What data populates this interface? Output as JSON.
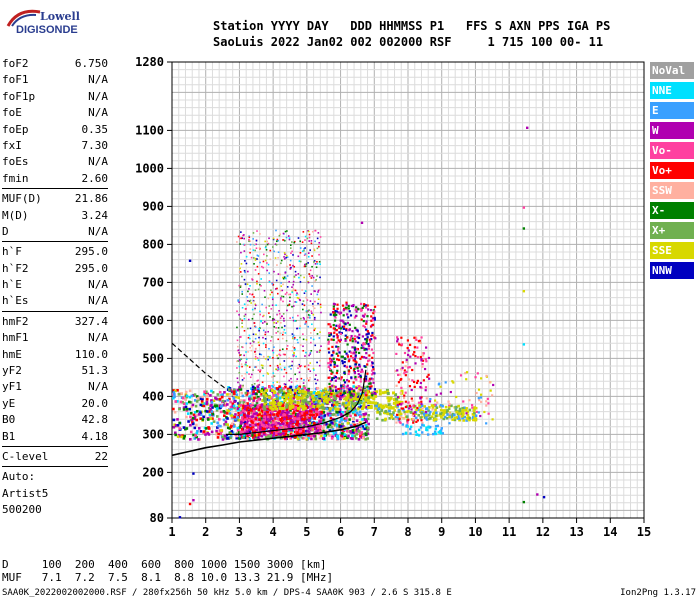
{
  "logo": {
    "line1": "Lowell",
    "line2": "DIGISONDE"
  },
  "header": {
    "line1": "Station YYYY DAY   DDD HHMMSS P1   FFS S AXN PPS IGA PS",
    "line2": "SaoLuis 2022 Jan02 002 002000 RSF     1 715 100 00- 11"
  },
  "params": [
    {
      "name": "foF2",
      "value": "6.750"
    },
    {
      "name": "foF1",
      "value": "N/A"
    },
    {
      "name": "foF1p",
      "value": "N/A"
    },
    {
      "name": "foE",
      "value": "N/A"
    },
    {
      "name": "foEp",
      "value": "0.35"
    },
    {
      "name": "fxI",
      "value": "7.30"
    },
    {
      "name": "foEs",
      "value": "N/A"
    },
    {
      "name": "fmin",
      "value": "2.60"
    },
    {
      "sep": true
    },
    {
      "name": "MUF(D)",
      "value": "21.86"
    },
    {
      "name": "M(D)",
      "value": "3.24"
    },
    {
      "name": "D",
      "value": "N/A"
    },
    {
      "sep": true
    },
    {
      "name": "h`F",
      "value": "295.0"
    },
    {
      "name": "h`F2",
      "value": "295.0"
    },
    {
      "name": "h`E",
      "value": "N/A"
    },
    {
      "name": "h`Es",
      "value": "N/A"
    },
    {
      "sep": true
    },
    {
      "name": "hmF2",
      "value": "327.4"
    },
    {
      "name": "hmF1",
      "value": "N/A"
    },
    {
      "name": "hmE",
      "value": "110.0"
    },
    {
      "name": "yF2",
      "value": "51.3"
    },
    {
      "name": "yF1",
      "value": "N/A"
    },
    {
      "name": "yE",
      "value": "20.0"
    },
    {
      "name": "B0",
      "value": "42.8"
    },
    {
      "name": "B1",
      "value": "4.18"
    },
    {
      "sep": true
    },
    {
      "name": "C-level",
      "value": "22"
    },
    {
      "sep": true
    },
    {
      "name": "Auto:",
      "value": ""
    },
    {
      "name": "Artist5",
      "value": ""
    },
    {
      "name": "500200",
      "value": ""
    }
  ],
  "legend": [
    {
      "label": "NoVal",
      "color": "#a0a0a0"
    },
    {
      "label": "NNE",
      "color": "#00e0ff"
    },
    {
      "label": "E",
      "color": "#3aa0ff"
    },
    {
      "label": "W",
      "color": "#b000b0"
    },
    {
      "label": "Vo-",
      "color": "#ff40a0"
    },
    {
      "label": "Vo+",
      "color": "#ff0000"
    },
    {
      "label": "SSW",
      "color": "#ffb0a0"
    },
    {
      "label": "X-",
      "color": "#008000"
    },
    {
      "label": "X+",
      "color": "#70b050"
    },
    {
      "label": "SSE",
      "color": "#d8d800"
    },
    {
      "label": "NNW",
      "color": "#0000c0"
    }
  ],
  "chart_data": {
    "type": "scatter",
    "xlim": [
      1,
      15
    ],
    "ylim": [
      80,
      1280
    ],
    "x_ticks": [
      1,
      2,
      3,
      4,
      5,
      6,
      7,
      8,
      9,
      10,
      11,
      12,
      13,
      14,
      15
    ],
    "y_ticks": [
      80,
      200,
      300,
      400,
      500,
      600,
      700,
      800,
      900,
      1000,
      1100,
      1280
    ],
    "x_grid_step": 0.2,
    "y_grid_step": 20,
    "grid": true,
    "series": [
      {
        "type": "line",
        "style": "solid",
        "x": [
          1,
          1.5,
          2,
          2.5,
          3,
          3.5,
          4,
          4.5,
          5,
          5.5,
          6,
          6.5,
          6.75
        ],
        "y": [
          245,
          255,
          265,
          272,
          280,
          285,
          290,
          295,
          300,
          305,
          312,
          322,
          332
        ]
      },
      {
        "type": "line",
        "style": "dashed",
        "x": [
          1,
          1.5,
          2,
          2.3,
          2.6
        ],
        "y": [
          540,
          500,
          460,
          440,
          420
        ]
      },
      {
        "type": "line",
        "style": "virtual-height",
        "x": [
          2.6,
          3,
          3.5,
          4,
          4.5,
          5,
          5.5,
          6,
          6.3,
          6.5,
          6.65,
          6.75
        ],
        "y": [
          300,
          300,
          305,
          310,
          315,
          320,
          330,
          345,
          360,
          380,
          410,
          470
        ]
      }
    ]
  },
  "footer": {
    "d_row": "D     100  200  400  600  800 1000 1500 3000 [km]",
    "muf_row": "MUF   7.1  7.2  7.5  8.1  8.8 10.0 13.3 21.9 [MHz]",
    "file_info": "SAA0K_2022002002000.RSF / 280fx256h 50 kHz 5.0 km / DPS-4 SAA0K 903 / 2.6 S 315.8 E",
    "version": "Ion2Png 1.3.17"
  }
}
